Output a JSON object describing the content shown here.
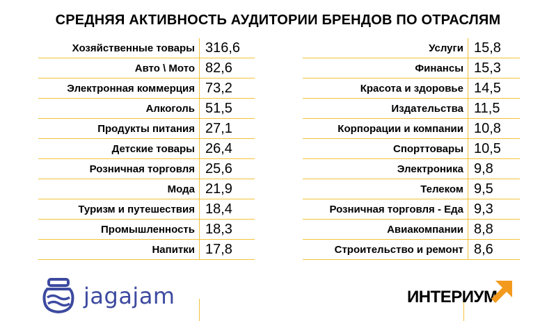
{
  "chart_data": {
    "type": "table",
    "title": "СРЕДНЯЯ АКТИВНОСТЬ АУДИТОРИИ БРЕНДОВ ПО ОТРАСЛЯМ",
    "columns": [
      {
        "rows": [
          {
            "label": "Хозяйственные товары",
            "value": "316,6"
          },
          {
            "label": "Авто \\ Мото",
            "value": "82,6"
          },
          {
            "label": "Электронная коммерция",
            "value": "73,2"
          },
          {
            "label": "Алкоголь",
            "value": "51,5"
          },
          {
            "label": "Продукты питания",
            "value": "27,1"
          },
          {
            "label": "Детские товары",
            "value": "26,4"
          },
          {
            "label": "Розничная торговля",
            "value": "25,6"
          },
          {
            "label": "Мода",
            "value": "21,9"
          },
          {
            "label": "Туризм и путешествия",
            "value": "18,4"
          },
          {
            "label": "Промышленность",
            "value": "18,3"
          },
          {
            "label": "Напитки",
            "value": "17,8"
          }
        ]
      },
      {
        "rows": [
          {
            "label": "Услуги",
            "value": "15,8"
          },
          {
            "label": "Финансы",
            "value": "15,3"
          },
          {
            "label": "Красота и здоровье",
            "value": "14,5"
          },
          {
            "label": "Издательства",
            "value": "11,5"
          },
          {
            "label": "Корпорации и компании",
            "value": "10,8"
          },
          {
            "label": "Спорттовары",
            "value": "10,5"
          },
          {
            "label": "Электроника",
            "value": "9,8"
          },
          {
            "label": "Телеком",
            "value": "9,5"
          },
          {
            "label": "Розничная торговля - Еда",
            "value": "9,3"
          },
          {
            "label": "Авиакомпании",
            "value": "8,8"
          },
          {
            "label": "Строительство и ремонт",
            "value": "8,6"
          }
        ]
      }
    ]
  },
  "logos": {
    "left": {
      "text": "jagajam",
      "color": "#3d4aa0",
      "icon": "jar-icon"
    },
    "right": {
      "text": "ИНТЕРИУМ",
      "icon": "arrow-up-right-icon",
      "accent": "#f39a1e"
    }
  },
  "colors": {
    "rule": "#f2c23a"
  }
}
